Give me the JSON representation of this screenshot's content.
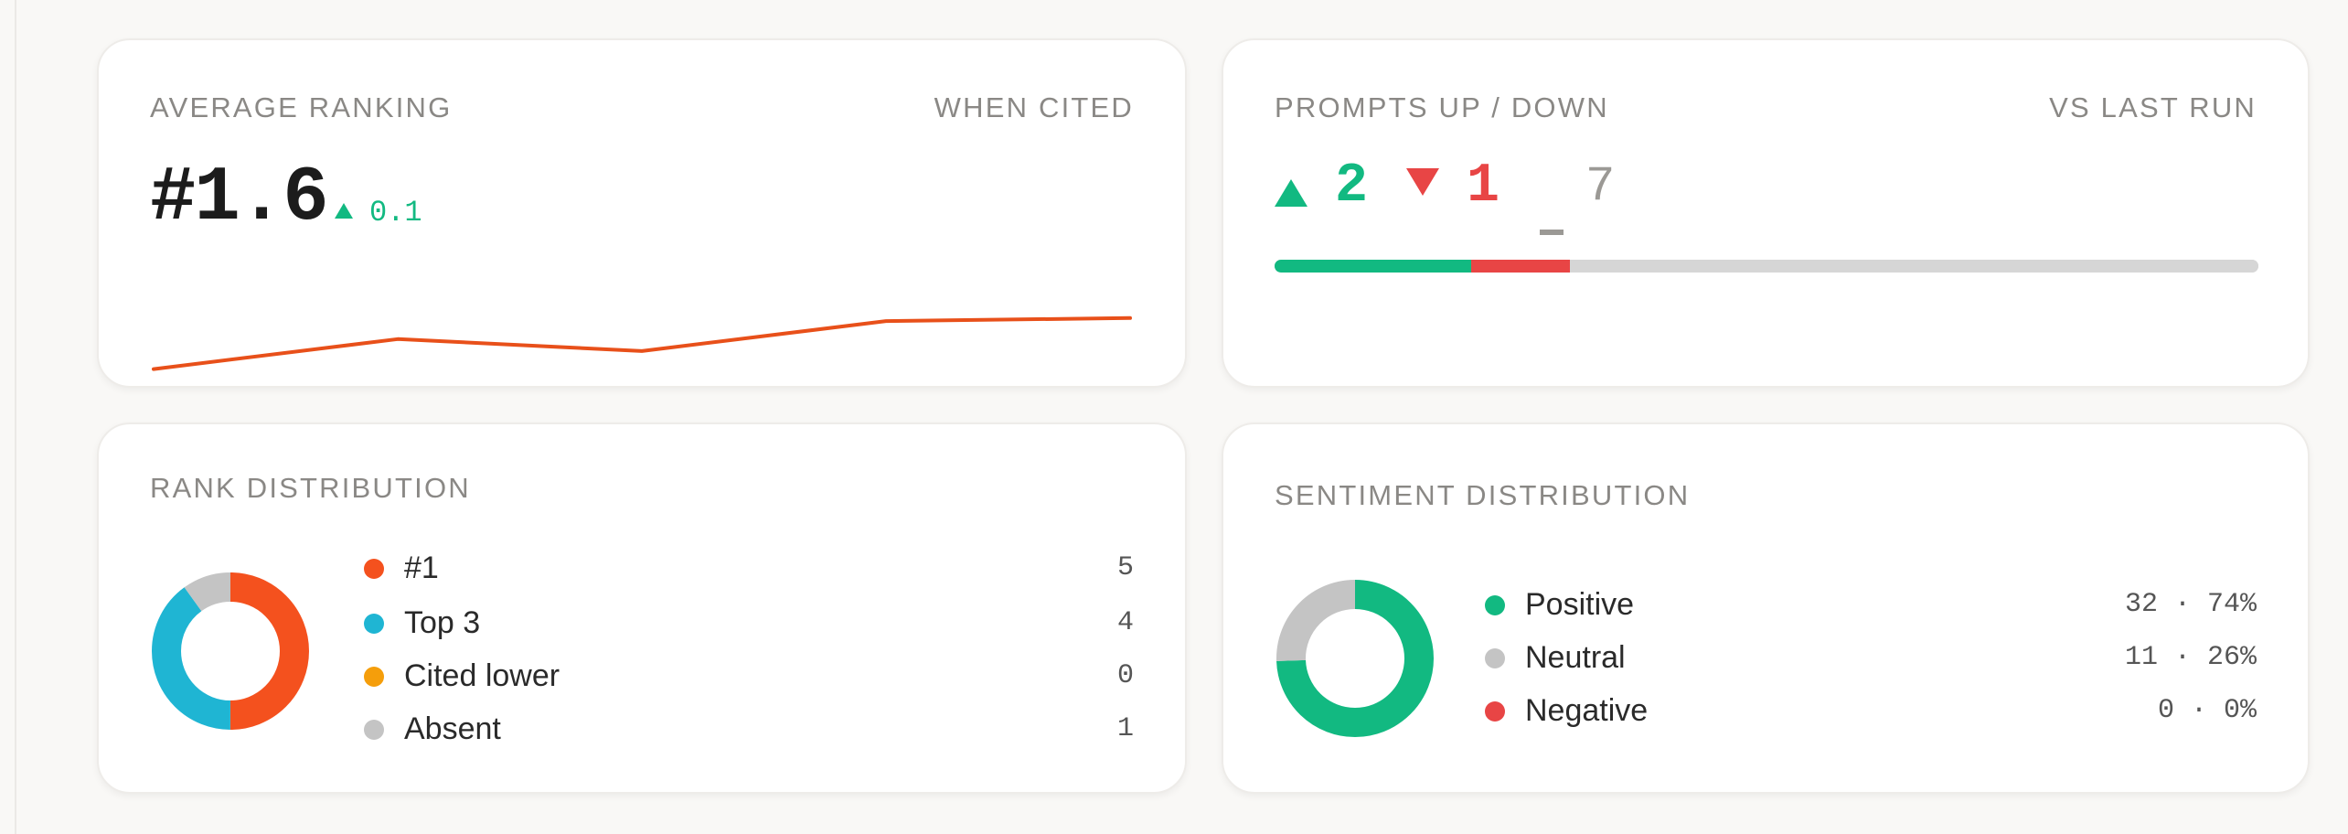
{
  "average_ranking": {
    "title": "AVERAGE RANKING",
    "subtitle": "WHEN CITED",
    "value": "#1.6",
    "delta": "0.1",
    "delta_direction": "up",
    "trend": [
      1.9,
      1.7,
      1.78,
      1.58,
      1.56
    ],
    "trend_color": "#e8501a"
  },
  "prompts": {
    "title": "PROMPTS UP / DOWN",
    "subtitle": "VS LAST RUN",
    "up": 2,
    "down": 1,
    "flat": 7,
    "up_label": "2",
    "down_label": "1",
    "flat_label": "7",
    "colors": {
      "up": "#12b981",
      "down": "#e84545",
      "flat": "#d6d6d6"
    }
  },
  "rank_distribution": {
    "title": "RANK DISTRIBUTION",
    "items": [
      {
        "label": "#1",
        "value": "5",
        "count": 5,
        "color": "#f4511e"
      },
      {
        "label": "Top 3",
        "value": "4",
        "count": 4,
        "color": "#1fb5d3"
      },
      {
        "label": "Cited lower",
        "value": "0",
        "count": 0,
        "color": "#f59e0b"
      },
      {
        "label": "Absent",
        "value": "1",
        "count": 1,
        "color": "#c4c4c4"
      }
    ]
  },
  "sentiment_distribution": {
    "title": "SENTIMENT DISTRIBUTION",
    "items": [
      {
        "label": "Positive",
        "value": "32 · 74%",
        "count": 32,
        "color": "#12b981"
      },
      {
        "label": "Neutral",
        "value": "11 · 26%",
        "count": 11,
        "color": "#c4c4c4"
      },
      {
        "label": "Negative",
        "value": "0 · 0%",
        "count": 0,
        "color": "#e84545"
      }
    ]
  }
}
